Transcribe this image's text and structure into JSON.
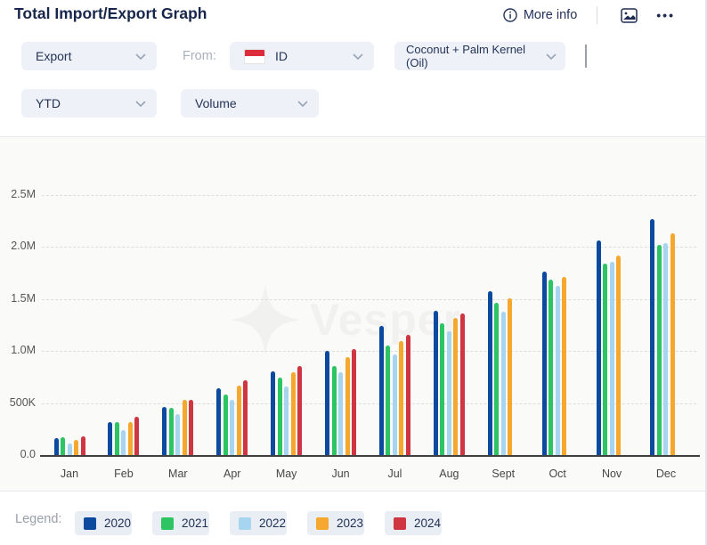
{
  "header": {
    "title": "Total Import/Export Graph",
    "more_info_label": "More info",
    "ellipsis": "•••"
  },
  "filters": {
    "trade_direction": {
      "value": "Export"
    },
    "from_label": "From:",
    "country": {
      "value": "ID"
    },
    "product": {
      "value": "Coconut + Palm Kernel (Oil)"
    },
    "period": {
      "value": "YTD"
    },
    "measure": {
      "value": "Volume"
    }
  },
  "watermark": "Vesper",
  "legend": {
    "label": "Legend:",
    "items": [
      {
        "label": "2020",
        "color": "#0b4a9f"
      },
      {
        "label": "2021",
        "color": "#2dc563"
      },
      {
        "label": "2022",
        "color": "#a7d4ee"
      },
      {
        "label": "2023",
        "color": "#f5a82d"
      },
      {
        "label": "2024",
        "color": "#cf3642"
      }
    ]
  },
  "chart_data": {
    "type": "bar",
    "title": "Total Import/Export Graph",
    "xlabel": "",
    "ylabel": "Volume",
    "ylim": [
      0,
      2500000
    ],
    "grid": "dashed-horizontal",
    "legend_position": "bottom",
    "categories": [
      "Jan",
      "Feb",
      "Mar",
      "Apr",
      "May",
      "Jun",
      "Jul",
      "Aug",
      "Sept",
      "Oct",
      "Nov",
      "Dec"
    ],
    "y_ticks": [
      {
        "label": "0.0",
        "value": 0
      },
      {
        "label": "500K",
        "value": 500000
      },
      {
        "label": "1.0M",
        "value": 1000000
      },
      {
        "label": "1.5M",
        "value": 1500000
      },
      {
        "label": "2.0M",
        "value": 2000000
      },
      {
        "label": "2.5M",
        "value": 2500000
      }
    ],
    "series": [
      {
        "name": "2020",
        "color": "#0b4a9f",
        "values": [
          160000,
          315000,
          465000,
          645000,
          805000,
          1005000,
          1240000,
          1390000,
          1575000,
          1765000,
          2060000,
          2270000
        ]
      },
      {
        "name": "2021",
        "color": "#2dc563",
        "values": [
          175000,
          315000,
          455000,
          580000,
          745000,
          855000,
          1055000,
          1270000,
          1465000,
          1690000,
          1845000,
          2020000
        ]
      },
      {
        "name": "2022",
        "color": "#a7d4ee",
        "values": [
          115000,
          240000,
          395000,
          530000,
          660000,
          800000,
          965000,
          1190000,
          1380000,
          1625000,
          1860000,
          2040000
        ]
      },
      {
        "name": "2023",
        "color": "#f5a82d",
        "values": [
          145000,
          320000,
          535000,
          670000,
          795000,
          940000,
          1100000,
          1320000,
          1505000,
          1715000,
          1920000,
          2135000
        ]
      },
      {
        "name": "2024",
        "color": "#cf3642",
        "values": [
          180000,
          370000,
          530000,
          715000,
          855000,
          1020000,
          1160000,
          1360000,
          null,
          null,
          null,
          null
        ]
      }
    ]
  }
}
